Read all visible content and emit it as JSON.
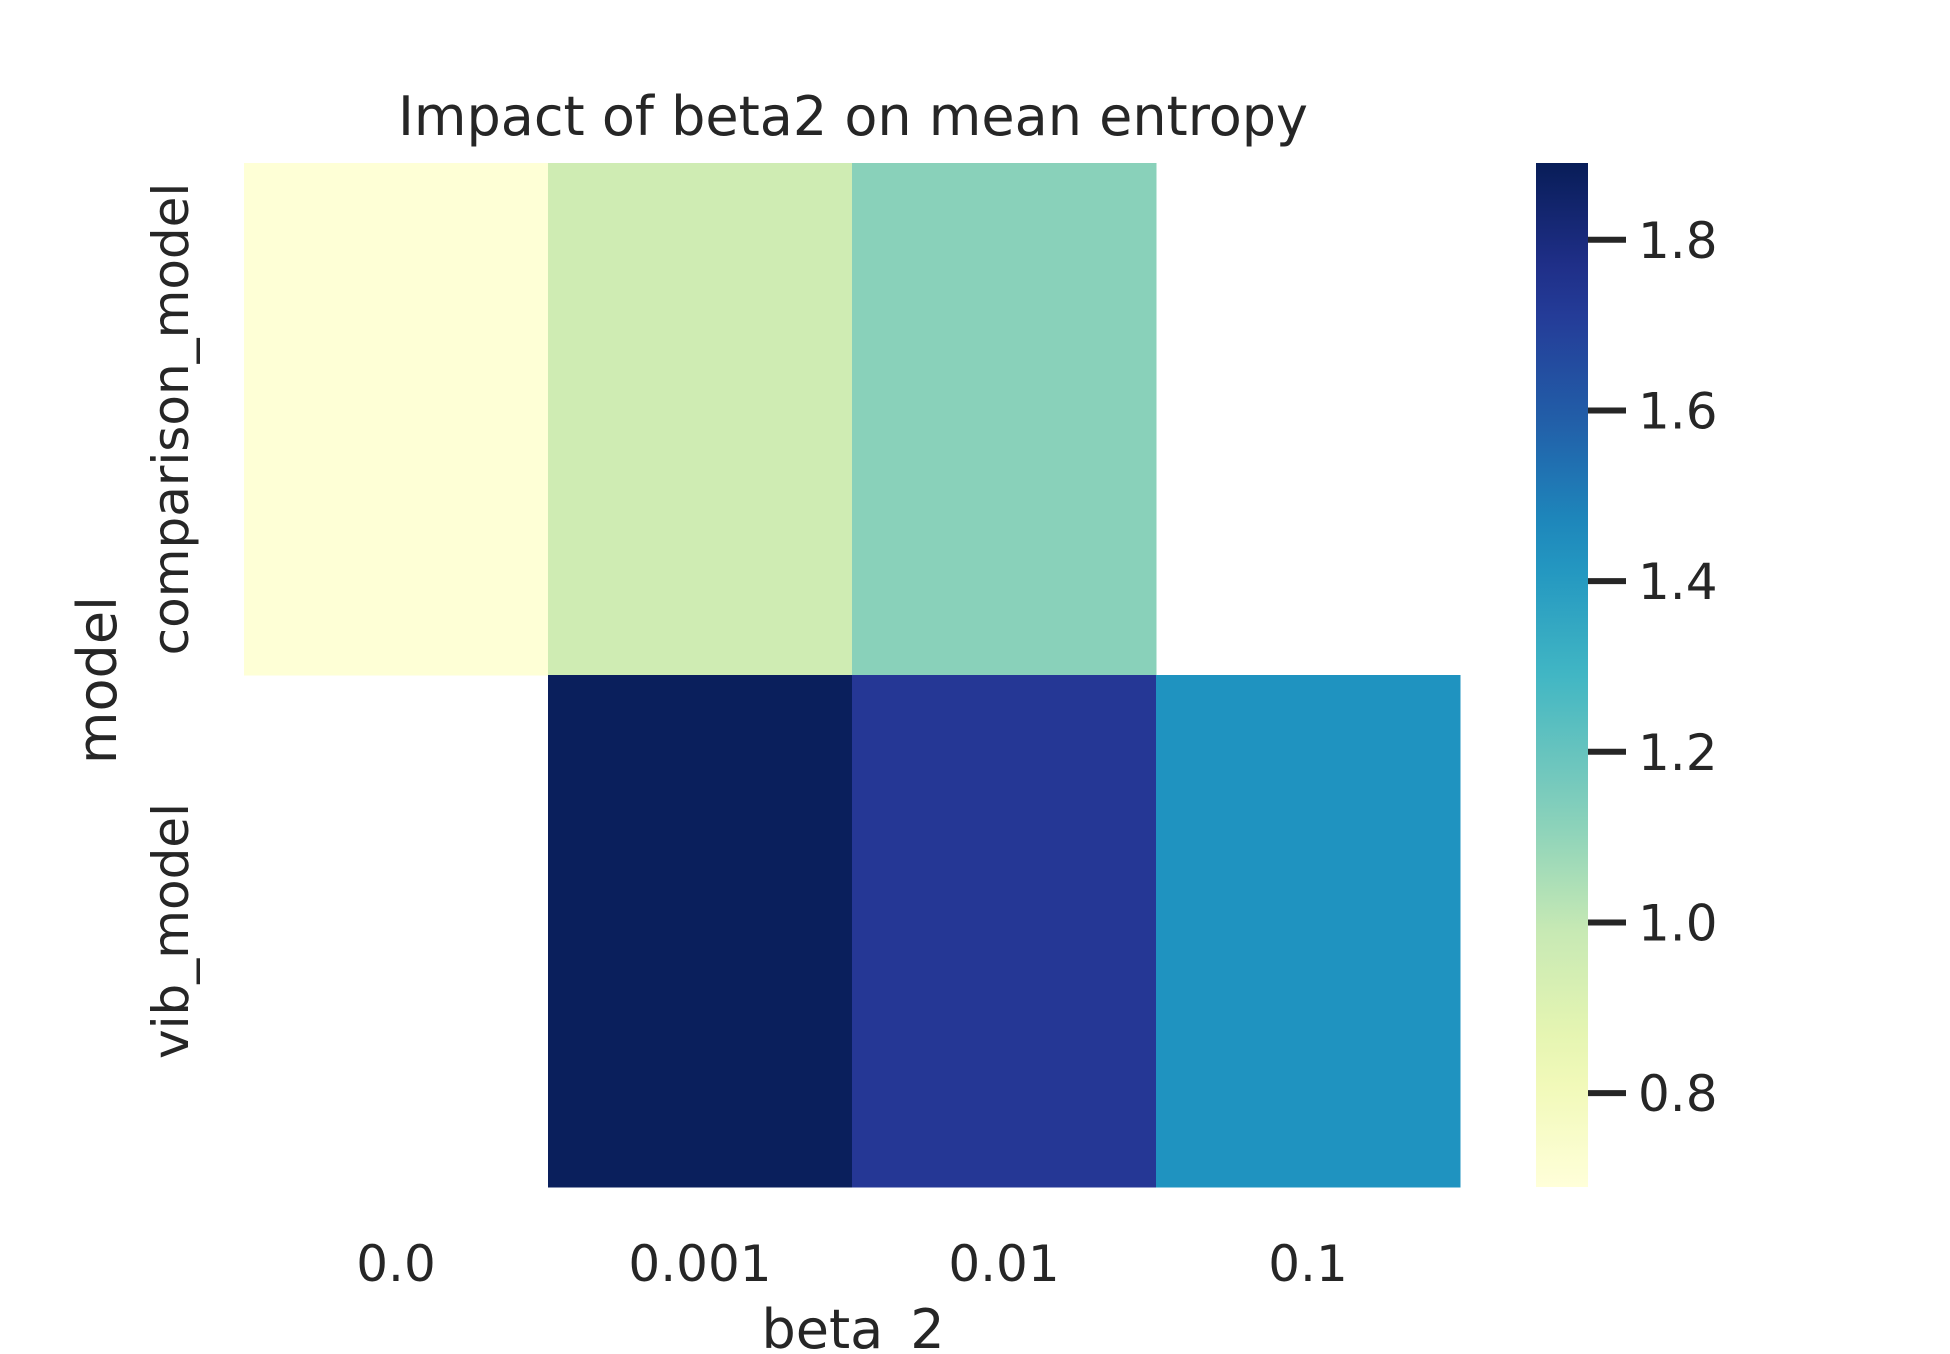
{
  "chart_data": {
    "type": "heatmap",
    "title": "Impact of beta2 on mean entropy",
    "xlabel": "beta_2",
    "ylabel": "model",
    "x_categories": [
      "0.0",
      "0.001",
      "0.01",
      "0.1"
    ],
    "y_categories": [
      "comparison_model",
      "vib_model"
    ],
    "values": [
      [
        0.7,
        0.96,
        1.12,
        null
      ],
      [
        null,
        1.88,
        1.73,
        1.43
      ]
    ],
    "colormap": "YlGnBu",
    "colorbar": {
      "vmin": 0.69,
      "vmax": 1.89,
      "ticks": [
        "0.8",
        "1.0",
        "1.2",
        "1.4",
        "1.6",
        "1.8"
      ]
    },
    "grid": false
  }
}
